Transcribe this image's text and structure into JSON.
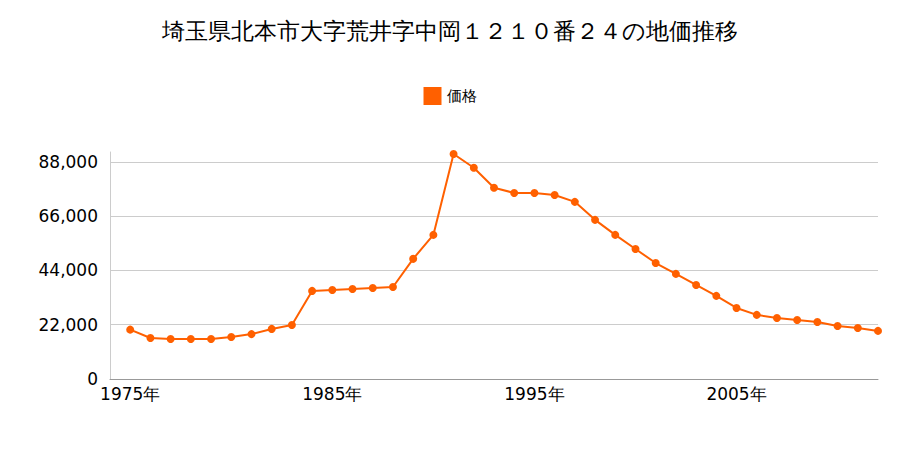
{
  "chart_data": {
    "type": "line",
    "title": "埼玉県北本市大字荒井字中岡１２１０番２４の地価推移",
    "series": [
      {
        "name": "価格",
        "color": "#ff6000",
        "marker": "circle",
        "line_style": "solid",
        "values": [
          20000,
          16600,
          16200,
          16200,
          16200,
          17000,
          18200,
          20300,
          21900,
          35700,
          36100,
          36500,
          36900,
          37300,
          48700,
          58400,
          91200,
          85600,
          77500,
          75400,
          75400,
          74600,
          71800,
          64500,
          58400,
          52700,
          47000,
          42600,
          38100,
          33700,
          28800,
          26000,
          24700,
          23900,
          23100,
          21500,
          20700,
          19500
        ]
      }
    ],
    "x": [
      1975,
      1976,
      1977,
      1978,
      1979,
      1980,
      1981,
      1982,
      1983,
      1984,
      1985,
      1986,
      1987,
      1988,
      1989,
      1990,
      1991,
      1992,
      1993,
      1994,
      1995,
      1996,
      1997,
      1998,
      1999,
      2000,
      2001,
      2002,
      2003,
      2004,
      2005,
      2006,
      2007,
      2008,
      2009,
      2010,
      2011,
      2012
    ],
    "xlim": [
      1974,
      2012
    ],
    "xticks": [
      {
        "value": 1975,
        "label": "1975年"
      },
      {
        "value": 1985,
        "label": "1985年"
      },
      {
        "value": 1995,
        "label": "1995年"
      },
      {
        "value": 2005,
        "label": "2005年"
      }
    ],
    "ylim": [
      0,
      92000
    ],
    "yticks": [
      0,
      {
        "value": 22000,
        "label": "22,000"
      },
      {
        "value": 44000,
        "label": "44,000"
      },
      {
        "value": 66000,
        "label": "66,000"
      },
      {
        "value": 88000,
        "label": "88,000"
      }
    ],
    "grid": true,
    "legend": "top"
  }
}
